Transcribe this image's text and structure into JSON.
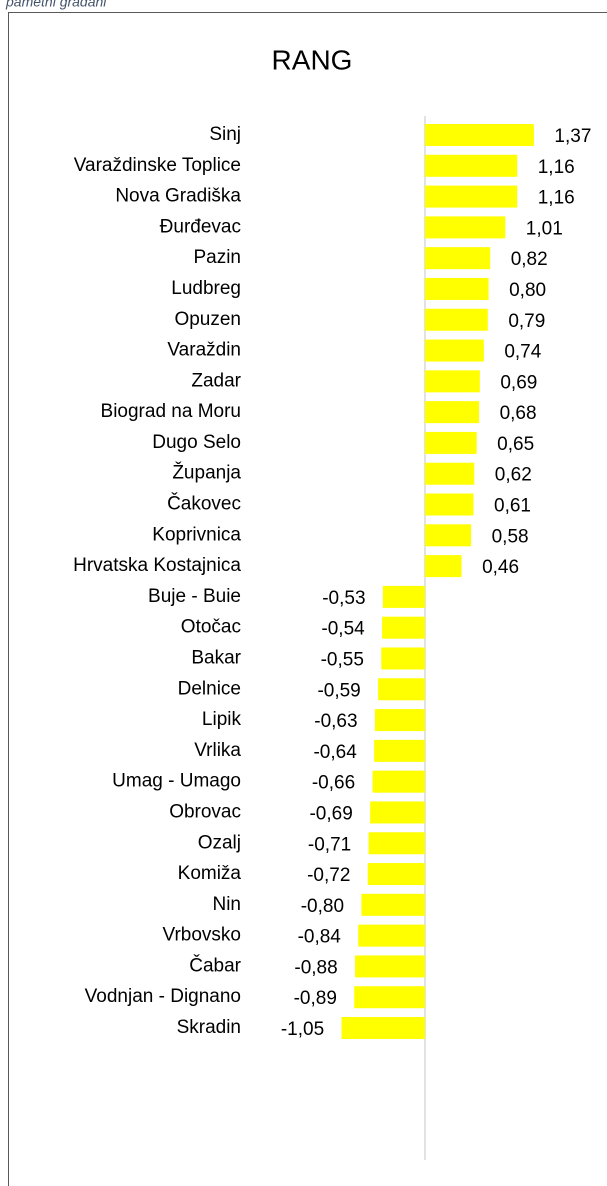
{
  "caption": "pametni građani",
  "chart_data": {
    "type": "bar",
    "orientation": "horizontal",
    "title": "RANG",
    "color": "#ffff00",
    "categories": [
      "Sinj",
      "Varaždinske Toplice",
      "Nova Gradiška",
      "Đurđevac",
      "Pazin",
      "Ludbreg",
      "Opuzen",
      "Varaždin",
      "Zadar",
      "Biograd na Moru",
      "Dugo Selo",
      "Županja",
      "Čakovec",
      "Koprivnica",
      "Hrvatska Kostajnica",
      "Buje - Buie",
      "Otočac",
      "Bakar",
      "Delnice",
      "Lipik",
      "Vrlika",
      "Umag - Umago",
      "Obrovac",
      "Ozalj",
      "Komiža",
      "Nin",
      "Vrbovsko",
      "Čabar",
      "Vodnjan - Dignano",
      "Skradin"
    ],
    "values": [
      1.37,
      1.16,
      1.16,
      1.01,
      0.82,
      0.8,
      0.79,
      0.74,
      0.69,
      0.68,
      0.65,
      0.62,
      0.61,
      0.58,
      0.46,
      -0.53,
      -0.54,
      -0.55,
      -0.59,
      -0.63,
      -0.64,
      -0.66,
      -0.69,
      -0.71,
      -0.72,
      -0.8,
      -0.84,
      -0.88,
      -0.89,
      -1.05
    ],
    "value_labels": [
      "1,37",
      "1,16",
      "1,16",
      "1,01",
      "0,82",
      "0,80",
      "0,79",
      "0,74",
      "0,69",
      "0,68",
      "0,65",
      "0,62",
      "0,61",
      "0,58",
      "0,46",
      "-0,53",
      "-0,54",
      "-0,55",
      "-0,59",
      "-0,63",
      "-0,64",
      "-0,66",
      "-0,69",
      "-0,71",
      "-0,72",
      "-0,80",
      "-0,84",
      "-0,88",
      "-0,89",
      "-1,05"
    ]
  }
}
